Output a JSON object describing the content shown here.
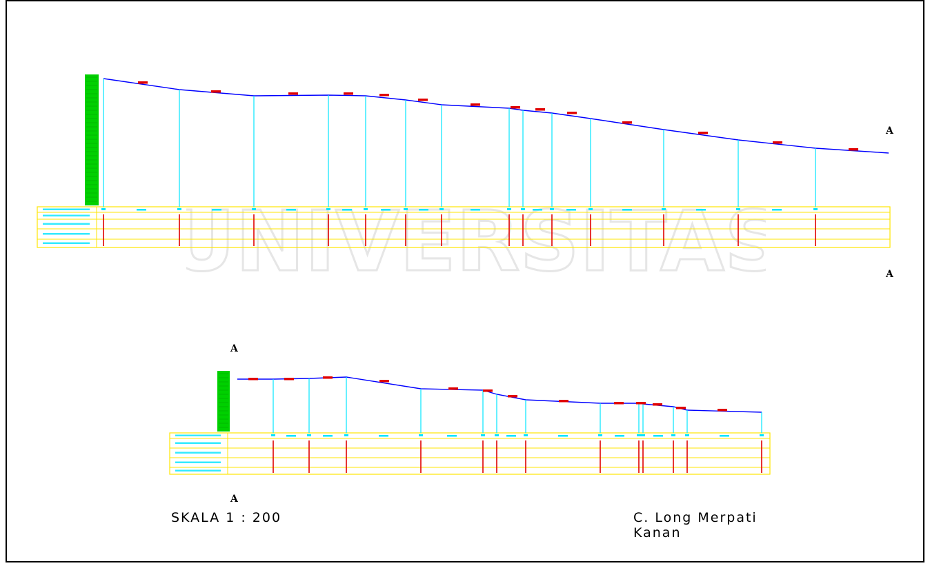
{
  "markers": {
    "top_right_upper": "A",
    "top_right_lower": "A",
    "bottom_left_upper": "A",
    "bottom_left_lower": "A"
  },
  "scale_label": "SKALA 1 : 200",
  "drawing_title_line1": "C. Long Merpati",
  "drawing_title_line2": "Kanan",
  "watermark_text": "UNIVERSITAS",
  "colors": {
    "profile_line": "#0000ff",
    "station_line": "#00e5ff",
    "table_grid": "#ffe600",
    "label_marks": "#e00000",
    "scale_bar": "#00d000",
    "watermark": "#e8e8e8"
  }
}
